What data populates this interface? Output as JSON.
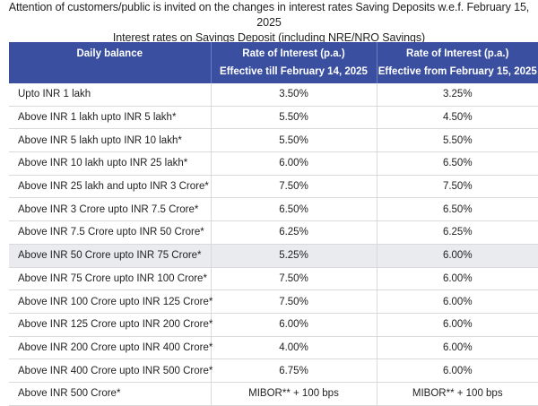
{
  "notice": {
    "line1": "Attention of customers/public is invited on the changes in interest rates Saving Deposits w.e.f. February 15, 2025",
    "line2": "Interest rates on Savings Deposit (including NRE/NRO Savings)"
  },
  "table": {
    "headers": [
      {
        "line1": "Daily balance",
        "line2": ""
      },
      {
        "line1": "Rate of Interest (p.a.)",
        "line2": "Effective till February 14, 2025"
      },
      {
        "line1": "Rate of Interest (p.a.)",
        "line2": "Effective from February 15, 2025"
      }
    ],
    "rows": [
      {
        "balance": "Upto INR 1 lakh",
        "old": "3.50%",
        "new": "3.25%"
      },
      {
        "balance": "Above INR 1 lakh upto INR 5 lakh*",
        "old": "5.50%",
        "new": "4.50%"
      },
      {
        "balance": "Above INR 5 lakh upto INR 10 lakh*",
        "old": "5.50%",
        "new": "5.50%"
      },
      {
        "balance": "Above INR 10 lakh upto INR  25 lakh*",
        "old": "6.00%",
        "new": "6.50%"
      },
      {
        "balance": "Above INR 25 lakh and upto INR  3 Crore*",
        "old": "7.50%",
        "new": "7.50%"
      },
      {
        "balance": "Above INR 3 Crore upto INR 7.5 Crore*",
        "old": "6.50%",
        "new": "6.50%"
      },
      {
        "balance": "Above INR 7.5 Crore upto INR 50 Crore*",
        "old": "6.25%",
        "new": "6.25%"
      },
      {
        "balance": "Above INR 50 Crore upto INR 75 Crore*",
        "old": "5.25%",
        "new": "6.00%"
      },
      {
        "balance": "Above INR 75 Crore upto INR 100 Crore*",
        "old": "7.50%",
        "new": "6.00%"
      },
      {
        "balance": "Above INR 100 Crore upto INR 125 Crore*",
        "old": "7.50%",
        "new": "6.00%"
      },
      {
        "balance": "Above INR 125 Crore upto INR 200 Crore*",
        "old": "6.00%",
        "new": "6.00%"
      },
      {
        "balance": "Above INR 200 Crore upto INR 400 Crore*",
        "old": "4.00%",
        "new": "6.00%"
      },
      {
        "balance": "Above INR 400 Crore upto INR 500 Crore*",
        "old": "6.75%",
        "new": "6.00%"
      },
      {
        "balance": "Above INR 500 Crore*",
        "old": "MIBOR** + 100 bps",
        "new": "MIBOR** + 100 bps"
      }
    ]
  }
}
